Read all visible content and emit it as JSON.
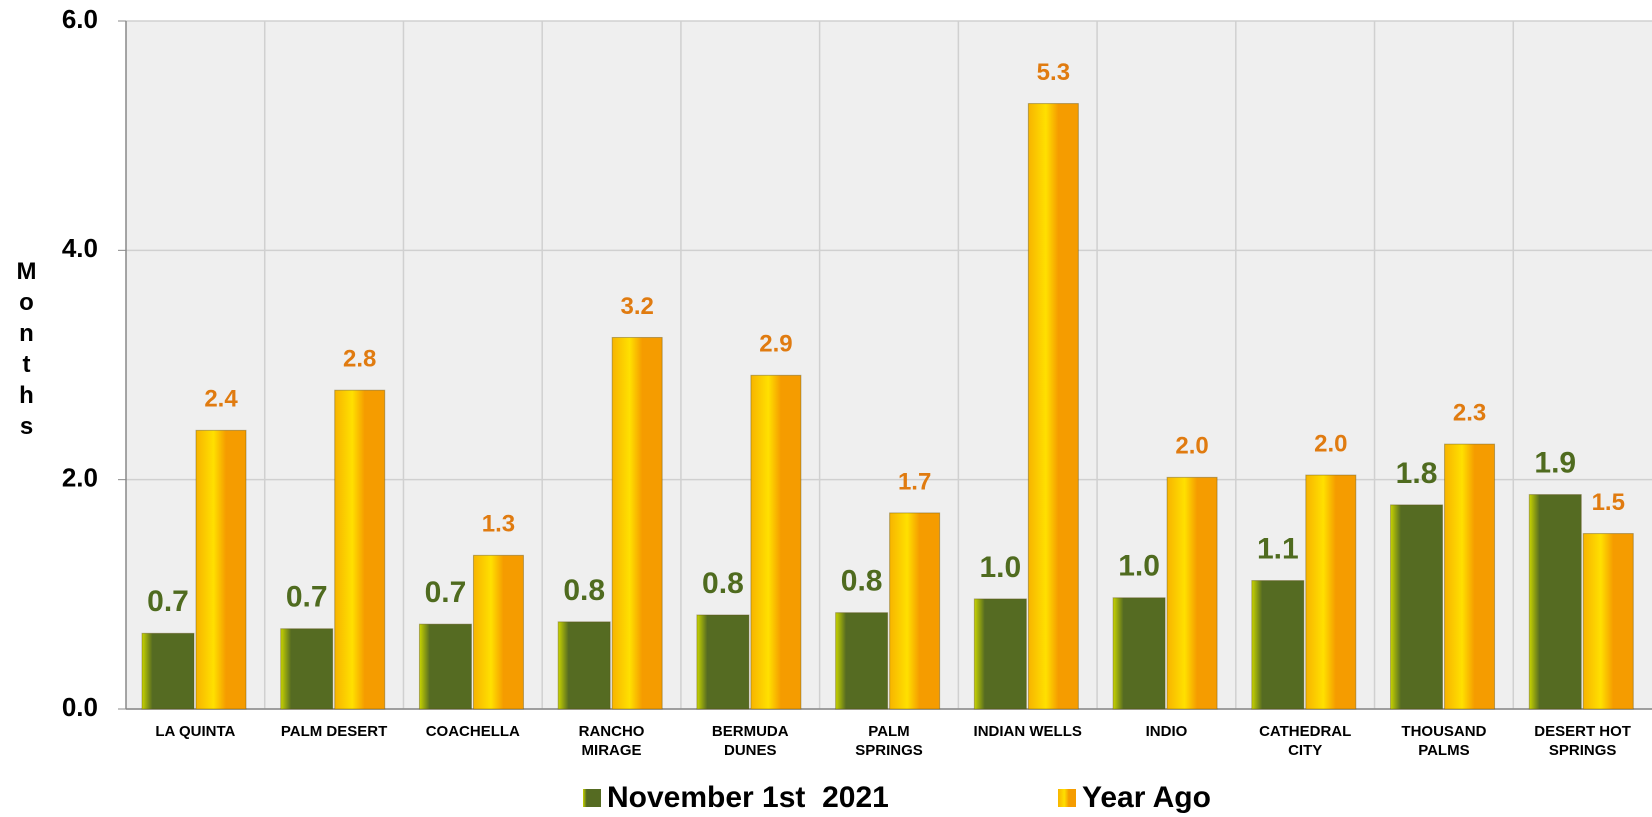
{
  "chart_data": {
    "type": "bar",
    "y_label": "Months",
    "categories": [
      "LA QUINTA",
      "PALM DESERT",
      "COACHELLA",
      "RANCHO\nMIRAGE",
      "BERMUDA\nDUNES",
      "PALM\nSPRINGS",
      "INDIAN WELLS",
      "INDIO",
      "CATHEDRAL\nCITY",
      "THOUSAND\nPALMS",
      "DESERT HOT\nSPRINGS"
    ],
    "series": [
      {
        "name": "November 1st  2021",
        "color": "#556b22",
        "values": [
          0.66,
          0.7,
          0.74,
          0.76,
          0.82,
          0.84,
          0.96,
          0.97,
          1.12,
          1.78,
          1.87
        ],
        "value_labels": [
          "0.7",
          "0.7",
          "0.7",
          "0.8",
          "0.8",
          "0.8",
          "1.0",
          "1.0",
          "1.1",
          "1.8",
          "1.9"
        ]
      },
      {
        "name": "Year Ago",
        "color": "#f59c00",
        "values": [
          2.43,
          2.78,
          1.34,
          3.24,
          2.91,
          1.71,
          5.28,
          2.02,
          2.04,
          2.31,
          1.53
        ],
        "value_labels": [
          "2.4",
          "2.8",
          "1.3",
          "3.2",
          "2.9",
          "1.7",
          "5.3",
          "2.0",
          "2.0",
          "2.3",
          "1.5"
        ]
      }
    ],
    "ylim": [
      0,
      6
    ],
    "yticks": [
      {
        "value": 0,
        "label": "0.0"
      },
      {
        "value": 2,
        "label": "2.0"
      },
      {
        "value": 4,
        "label": "4.0"
      },
      {
        "value": 6,
        "label": "6.0"
      }
    ],
    "grid": true,
    "legend": "bottom"
  }
}
